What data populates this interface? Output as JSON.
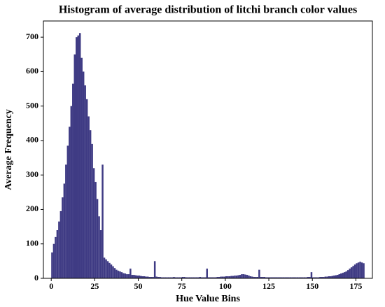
{
  "chart_data": {
    "type": "histogram",
    "title": "Histogram of average distribution of litchi branch color values",
    "x_label": "Hue Value Bins",
    "y_label": "Average Frequency",
    "color": "#3f3b84",
    "bins": [
      0,
      1,
      2,
      3,
      4,
      5,
      6,
      7,
      8,
      9,
      10,
      11,
      12,
      13,
      14,
      15,
      16,
      17,
      18,
      19,
      20,
      21,
      22,
      23,
      24,
      25,
      26,
      27,
      28,
      29,
      30,
      31,
      32,
      33,
      34,
      35,
      36,
      37,
      38,
      39,
      40,
      41,
      42,
      43,
      44,
      45,
      46,
      47,
      48,
      49,
      50,
      51,
      52,
      53,
      54,
      55,
      56,
      57,
      58,
      59,
      60,
      61,
      62,
      63,
      64,
      65,
      66,
      67,
      68,
      69,
      70,
      71,
      72,
      73,
      74,
      75,
      76,
      77,
      78,
      79,
      80,
      81,
      82,
      83,
      84,
      85,
      86,
      87,
      88,
      89,
      90,
      91,
      92,
      93,
      94,
      95,
      96,
      97,
      98,
      99,
      100,
      101,
      102,
      103,
      104,
      105,
      106,
      107,
      108,
      109,
      110,
      111,
      112,
      113,
      114,
      115,
      116,
      117,
      118,
      119,
      120,
      121,
      122,
      123,
      124,
      125,
      126,
      127,
      128,
      129,
      130,
      131,
      132,
      133,
      134,
      135,
      136,
      137,
      138,
      139,
      140,
      141,
      142,
      143,
      144,
      145,
      146,
      147,
      148,
      149,
      150,
      151,
      152,
      153,
      154,
      155,
      156,
      157,
      158,
      159,
      160,
      161,
      162,
      163,
      164,
      165,
      166,
      167,
      168,
      169,
      170,
      171,
      172,
      173,
      174,
      175,
      176,
      177,
      178,
      179,
      180
    ],
    "counts": [
      75,
      100,
      120,
      140,
      165,
      195,
      235,
      275,
      330,
      385,
      440,
      500,
      565,
      650,
      700,
      705,
      712,
      640,
      600,
      560,
      520,
      470,
      430,
      390,
      320,
      280,
      230,
      180,
      140,
      330,
      60,
      55,
      50,
      45,
      40,
      35,
      30,
      25,
      22,
      20,
      18,
      15,
      14,
      12,
      12,
      28,
      10,
      10,
      9,
      8,
      8,
      7,
      6,
      6,
      5,
      5,
      4,
      4,
      4,
      50,
      5,
      4,
      4,
      3,
      3,
      3,
      3,
      3,
      3,
      3,
      4,
      3,
      3,
      3,
      3,
      4,
      4,
      3,
      3,
      3,
      3,
      3,
      3,
      3,
      3,
      4,
      3,
      3,
      3,
      28,
      3,
      3,
      3,
      3,
      3,
      4,
      4,
      5,
      5,
      5,
      6,
      6,
      6,
      7,
      7,
      8,
      8,
      9,
      10,
      12,
      12,
      11,
      10,
      8,
      6,
      5,
      4,
      4,
      4,
      25,
      4,
      4,
      4,
      3,
      3,
      3,
      3,
      3,
      3,
      3,
      3,
      3,
      3,
      3,
      3,
      3,
      3,
      3,
      3,
      3,
      3,
      3,
      3,
      3,
      3,
      3,
      3,
      4,
      4,
      18,
      3,
      3,
      3,
      3,
      4,
      4,
      4,
      5,
      5,
      6,
      6,
      7,
      8,
      9,
      10,
      12,
      14,
      16,
      18,
      20,
      24,
      28,
      32,
      36,
      40,
      44,
      46,
      48,
      46,
      44
    ],
    "xlim": [
      -4.5,
      184.5
    ],
    "ylim": [
      0,
      747
    ],
    "xticks": [
      0,
      25,
      50,
      75,
      100,
      125,
      150,
      175
    ],
    "yticks": [
      0,
      100,
      200,
      300,
      400,
      500,
      600,
      700
    ]
  }
}
